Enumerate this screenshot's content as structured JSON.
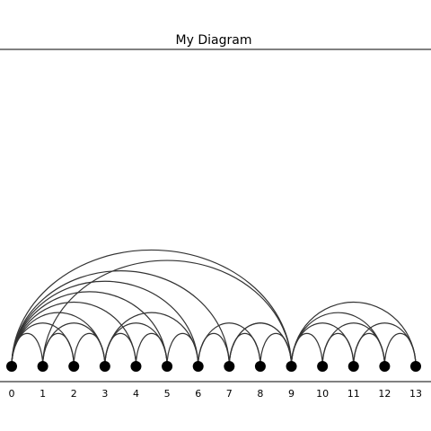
{
  "title": "My Diagram",
  "nodes": [
    "0",
    "1",
    "2",
    "3",
    "4",
    "5",
    "6",
    "7",
    "8",
    "9",
    "10",
    "11",
    "12",
    "13"
  ],
  "edges": [
    [
      0,
      1
    ],
    [
      1,
      2
    ],
    [
      2,
      3
    ],
    [
      3,
      4
    ],
    [
      4,
      5
    ],
    [
      5,
      6
    ],
    [
      6,
      7
    ],
    [
      7,
      8
    ],
    [
      8,
      9
    ],
    [
      9,
      10
    ],
    [
      10,
      11
    ],
    [
      11,
      12
    ],
    [
      12,
      13
    ],
    [
      0,
      2
    ],
    [
      1,
      3
    ],
    [
      3,
      5
    ],
    [
      6,
      8
    ],
    [
      7,
      9
    ],
    [
      9,
      11
    ],
    [
      10,
      12
    ],
    [
      11,
      13
    ],
    [
      0,
      3
    ],
    [
      3,
      6
    ],
    [
      7,
      9
    ],
    [
      9,
      12
    ],
    [
      0,
      4
    ],
    [
      9,
      13
    ],
    [
      0,
      5
    ],
    [
      0,
      6
    ],
    [
      0,
      7
    ],
    [
      0,
      9
    ],
    [
      1,
      9
    ]
  ],
  "colors": {
    "edge": "#333333",
    "node": "#000000",
    "frame": "#000000",
    "background": "#ffffff"
  }
}
